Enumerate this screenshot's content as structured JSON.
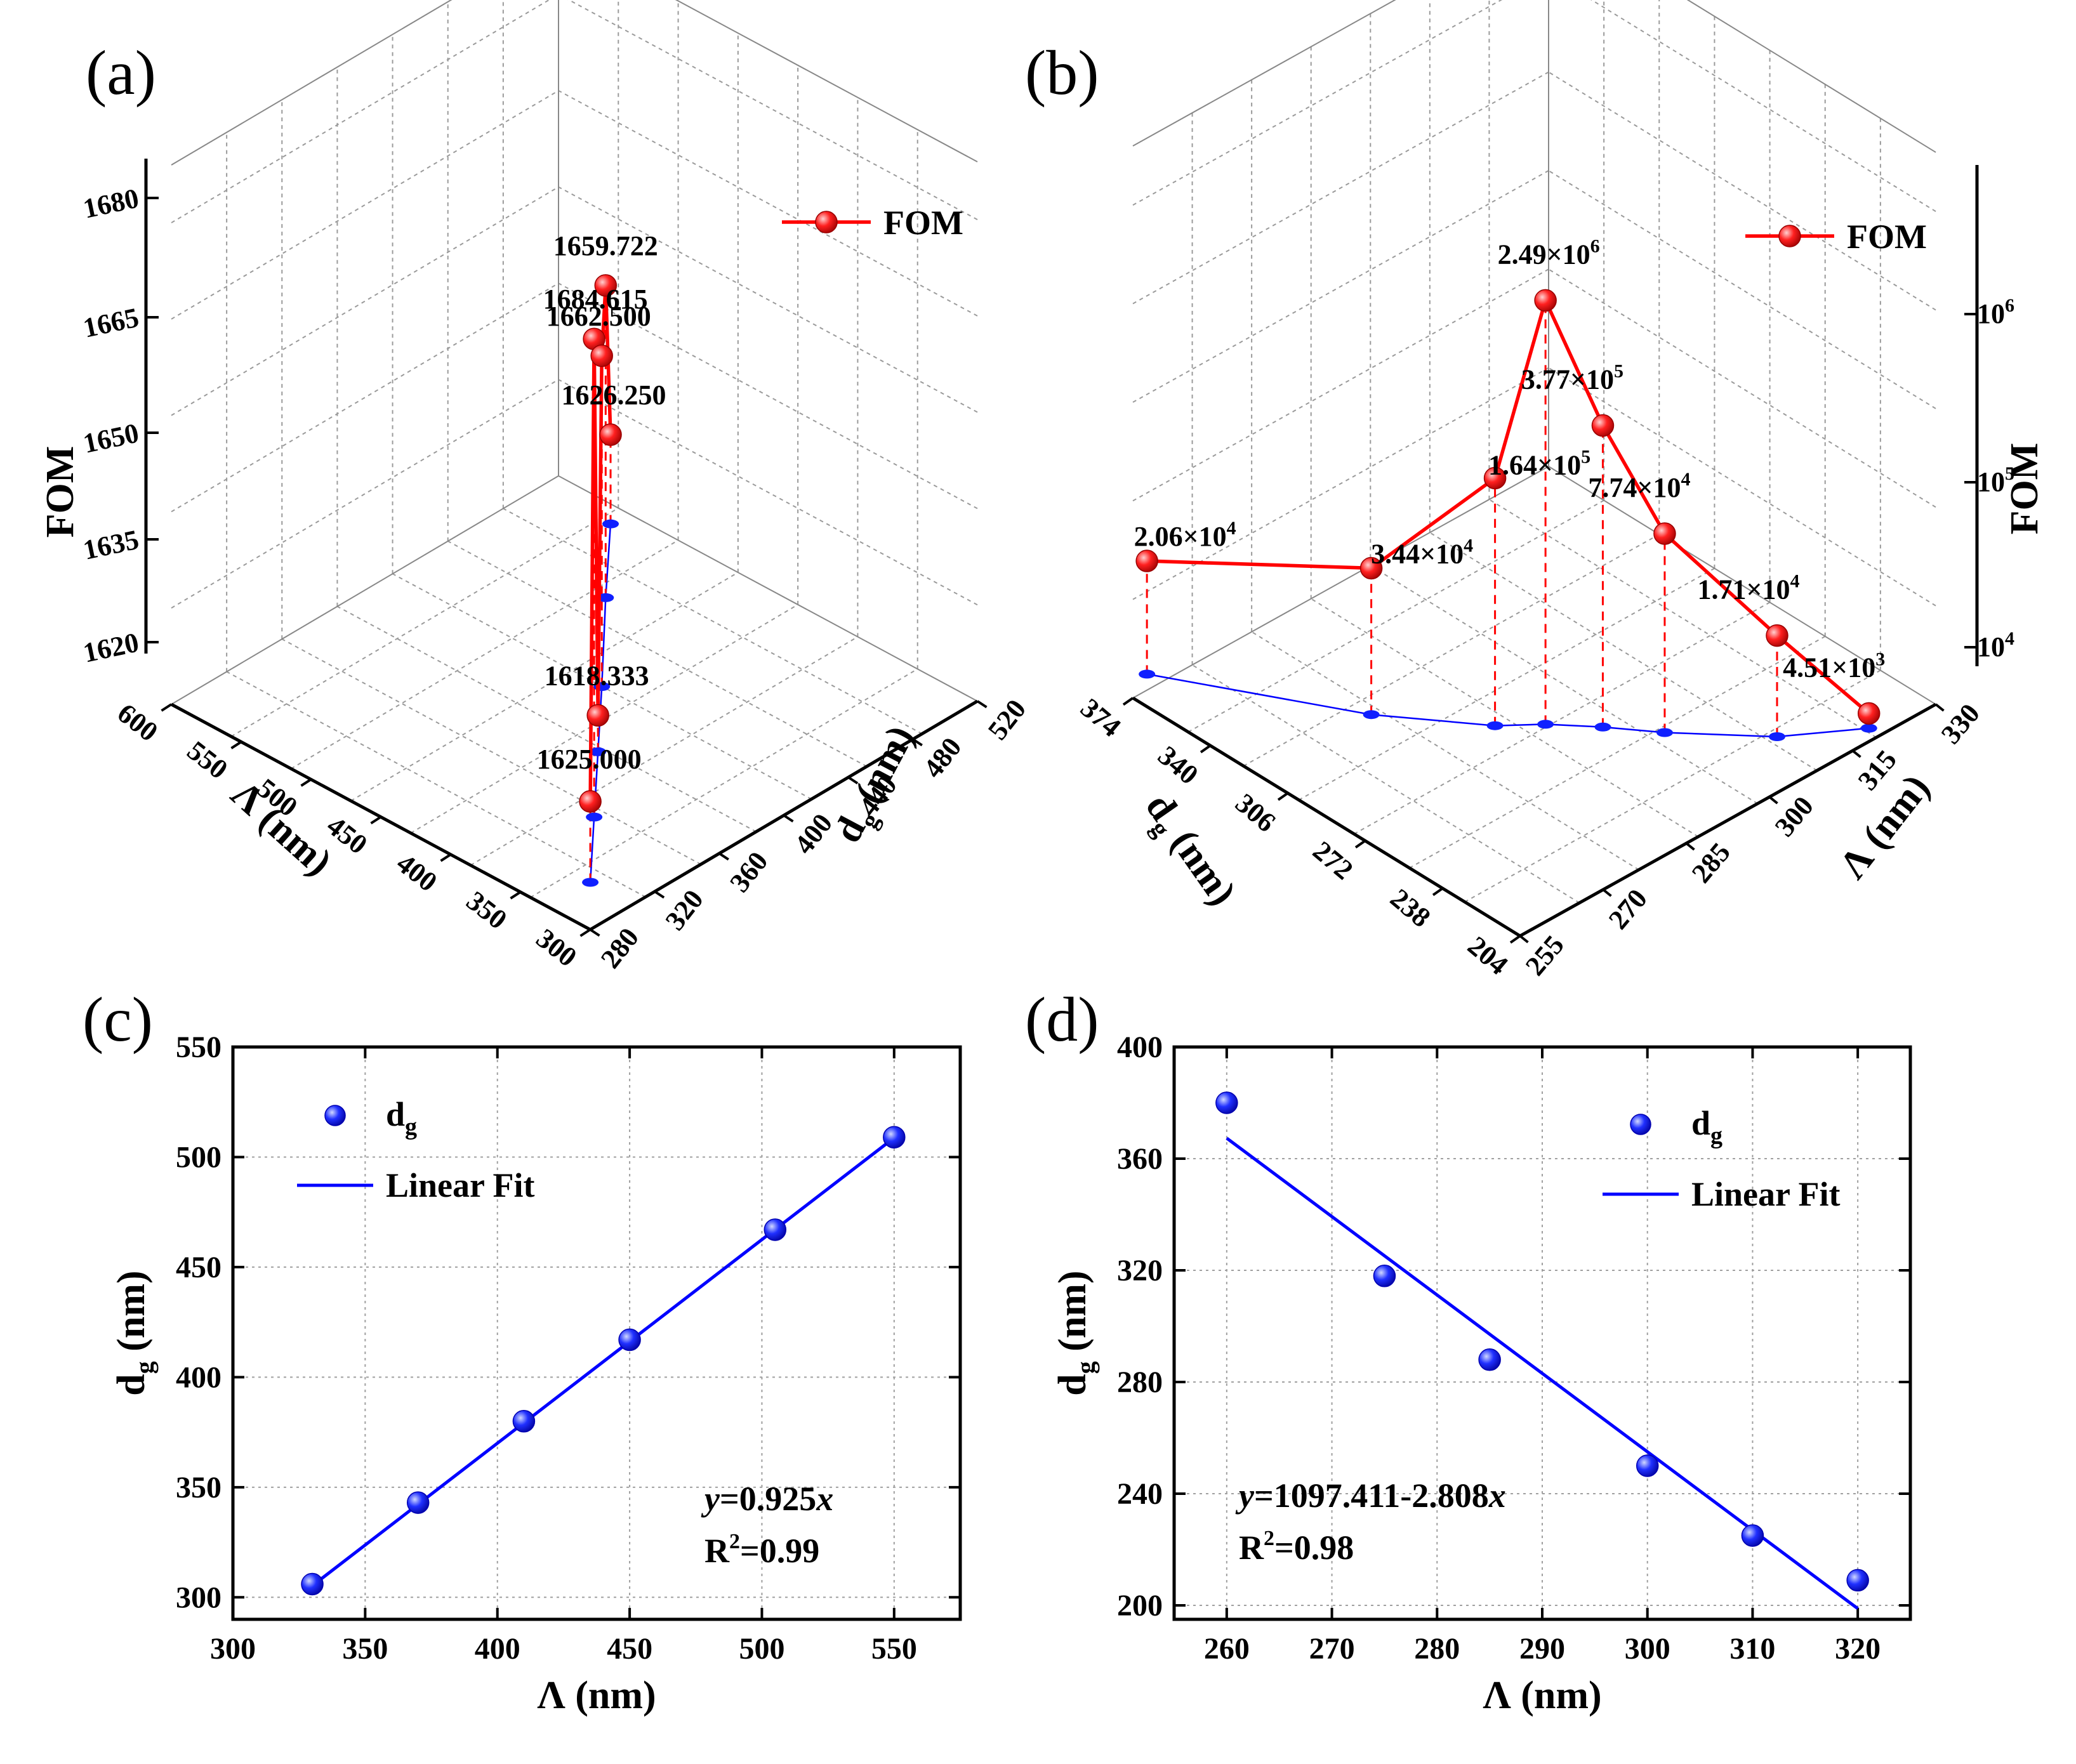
{
  "chart_data": [
    {
      "panel": "(a)",
      "type": "line",
      "projection": "3d",
      "zlabel": "FOM",
      "xlabel": "Λ (nm)",
      "ylabel": "d",
      "ylabel_sub": "g",
      "ylabel_unit": " (nm)",
      "x_ticks": [
        "300",
        "350",
        "400",
        "450",
        "500",
        "550",
        "600"
      ],
      "x_range": [
        300,
        600
      ],
      "y_ticks": [
        "280",
        "320",
        "360",
        "400",
        "440",
        "480",
        "520"
      ],
      "y_range": [
        280,
        520
      ],
      "z_ticks": [
        "1620",
        "1635",
        "1650",
        "1665",
        "1680"
      ],
      "z_range": [
        1610,
        1690
      ],
      "legend": "FOM",
      "series": [
        {
          "name": "FOM",
          "x": [
            330,
            370,
            410,
            450,
            505,
            550
          ],
          "y": [
            306,
            343,
            380,
            417,
            467,
            509
          ],
          "z": [
            1625.0,
            1684.615,
            1618.333,
            1662.5,
            1659.722,
            1626.25
          ],
          "labels": [
            "1625.000",
            "1684.615",
            "1618.333",
            "1662.500",
            "1659.722",
            "1626.250"
          ]
        }
      ],
      "colors": {
        "line": "#ff0000",
        "projection": "#0000ff"
      }
    },
    {
      "panel": "(b)",
      "type": "line",
      "projection": "3d",
      "zscale": "log",
      "zlabel": "FOM",
      "xlabel": "Λ (nm)",
      "ylabel": "d",
      "ylabel_sub": "g",
      "ylabel_unit": " (nm)",
      "x_ticks": [
        "255",
        "270",
        "285",
        "300",
        "315",
        "330"
      ],
      "x_range": [
        255,
        330
      ],
      "y_ticks": [
        "204",
        "238",
        "272",
        "306",
        "340",
        "374"
      ],
      "y_range": [
        204,
        374
      ],
      "z_ticks": [
        {
          "base": "10",
          "exp": "4"
        },
        {
          "base": "10",
          "exp": "5"
        },
        {
          "base": "10",
          "exp": "6"
        }
      ],
      "z_range_log10": [
        3.3,
        7.0
      ],
      "legend": "FOM",
      "series": [
        {
          "name": "FOM",
          "x": [
            320,
            310,
            300,
            295,
            290,
            285,
            275,
            260
          ],
          "y": [
            209,
            225,
            250,
            265,
            278,
            288,
            318,
            380
          ],
          "z": [
            4510,
            17100,
            77400,
            377000,
            2490000,
            164000,
            34400,
            20600
          ],
          "labels": [
            {
              "mant": "4.51",
              "exp": "3"
            },
            {
              "mant": "1.71",
              "exp": "4"
            },
            {
              "mant": "7.74",
              "exp": "4"
            },
            {
              "mant": "3.77",
              "exp": "5"
            },
            {
              "mant": "2.49",
              "exp": "6"
            },
            {
              "mant": "1.64",
              "exp": "5"
            },
            {
              "mant": "3.44",
              "exp": "4"
            },
            {
              "mant": "2.06",
              "exp": "4"
            }
          ]
        }
      ],
      "colors": {
        "line": "#ff0000",
        "projection": "#0000ff"
      }
    },
    {
      "panel": "(c)",
      "type": "scatter",
      "xlabel": "Λ (nm)",
      "ylabel": "d",
      "ylabel_sub": "g",
      "ylabel_unit": " (nm)",
      "xlim": [
        300,
        575
      ],
      "ylim": [
        290,
        550
      ],
      "x_ticks": [
        300,
        350,
        400,
        450,
        500,
        550
      ],
      "y_ticks": [
        300,
        350,
        400,
        450,
        500,
        550
      ],
      "grid": true,
      "series": [
        {
          "name": "d",
          "name_sub": "g",
          "x": [
            330,
            370,
            410,
            450,
            505,
            550
          ],
          "y": [
            306,
            343,
            380,
            417,
            467,
            509
          ]
        }
      ],
      "fit": {
        "name": "Linear Fit",
        "slope": 0.925,
        "intercept": 0,
        "x_range": [
          330,
          550
        ]
      },
      "equation": {
        "prefix": "y",
        "body": "=0.925",
        "suffix": "x"
      },
      "r2": {
        "pre": "R",
        "sup": "2",
        "post": "=0.99"
      },
      "colors": {
        "marker": "#0000ff",
        "fit": "#0000ff"
      }
    },
    {
      "panel": "(d)",
      "type": "scatter",
      "xlabel": "Λ (nm)",
      "ylabel": "d",
      "ylabel_sub": "g",
      "ylabel_unit": " (nm)",
      "xlim": [
        255,
        325
      ],
      "ylim": [
        195,
        400
      ],
      "x_ticks": [
        260,
        270,
        280,
        290,
        300,
        310,
        320
      ],
      "y_ticks": [
        200,
        240,
        280,
        320,
        360,
        400
      ],
      "grid": true,
      "series": [
        {
          "name": "d",
          "name_sub": "g",
          "x": [
            260,
            275,
            285,
            300,
            310,
            320
          ],
          "y": [
            380,
            318,
            288,
            250,
            225,
            209
          ]
        }
      ],
      "fit": {
        "name": "Linear Fit",
        "slope": -2.808,
        "intercept": 1097.411,
        "x_range": [
          260,
          320
        ]
      },
      "equation": {
        "prefix": "y",
        "body": "=1097.411-2.808",
        "suffix": "x"
      },
      "r2": {
        "pre": "R",
        "sup": "2",
        "post": "=0.98"
      },
      "colors": {
        "marker": "#0000ff",
        "fit": "#0000ff"
      }
    }
  ]
}
